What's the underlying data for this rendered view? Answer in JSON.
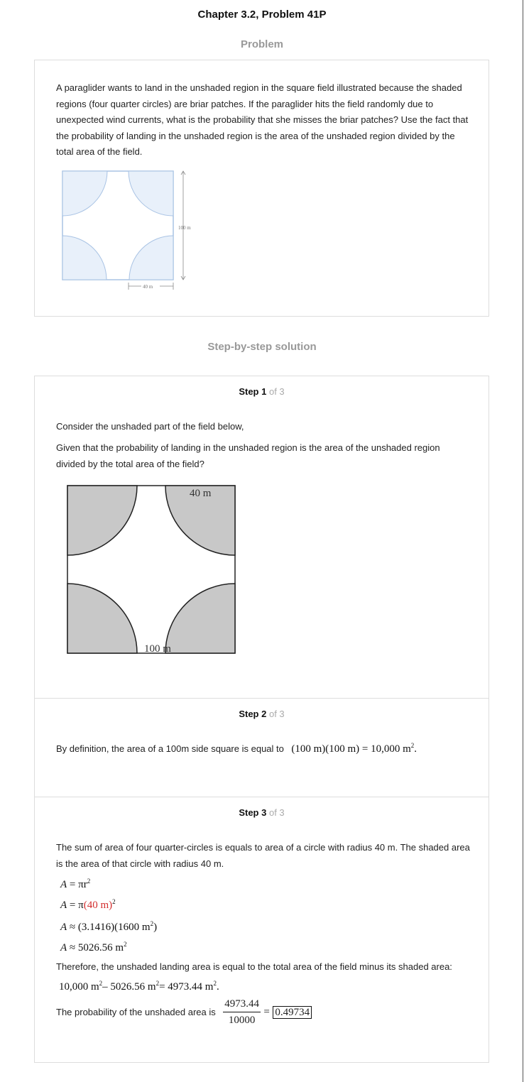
{
  "header": {
    "title": "Chapter 3.2, Problem 41P",
    "problem_heading": "Problem",
    "solution_heading": "Step-by-step solution"
  },
  "problem": {
    "text": "A paraglider wants to land in the unshaded region in the square field illustrated because the shaded regions (four quarter circles) are briar patches. If the paraglider hits the field randomly due to unexpected wind currents, what is the probability that she misses the briar patches? Use the fact that the probability of landing in the unshaded region is the area of the unshaded region divided by the total area of the field.",
    "figure": {
      "side_label": "100 m",
      "radius_label": "40 m"
    }
  },
  "steps": [
    {
      "label": "Step 1",
      "of": "of 3",
      "para1": "Consider the unshaded part of the field below,",
      "para2": "Given that the probability of landing in the unshaded region is the area of the unshaded region divided by the total area of the field?",
      "figure": {
        "radius_label": "40 m",
        "side_label": "100 m"
      }
    },
    {
      "label": "Step 2",
      "of": "of 3",
      "text": "By definition, the area of a 100m side square is equal to",
      "math_a": "(100 m)(100 m)",
      "math_b": "= 10,000 m",
      "math_end": "."
    },
    {
      "label": "Step 3",
      "of": "of 3",
      "para1": "The sum of area of four quarter-circles is equals to area of a circle with radius 40 m. The shaded area is the area of that circle with radius 40 m.",
      "eq1_lhs": "A",
      "eq1_rhs": "= πr",
      "eq2_lhs": "A",
      "eq2_op": "= π",
      "eq2_val": "(40 m)",
      "eq3_lhs": "A",
      "eq3_rhs": "≈ (3.1416)(1600 m",
      "eq3_end": ")",
      "eq4_lhs": "A",
      "eq4_rhs": "≈ 5026.56 m",
      "para2": "Therefore, the unshaded landing area is equal to the total area of the field minus its shaded area:",
      "para2_math_a": "10,000 m",
      "para2_math_b": "– 5026.56 m",
      "para2_math_c": "= 4973.44 m",
      "para2_math_end": ".",
      "prob_text": "The probability of the unshaded area is",
      "frac_num": "4973.44",
      "frac_den": "10000",
      "equals": "=",
      "answer": "0.49734"
    }
  ]
}
